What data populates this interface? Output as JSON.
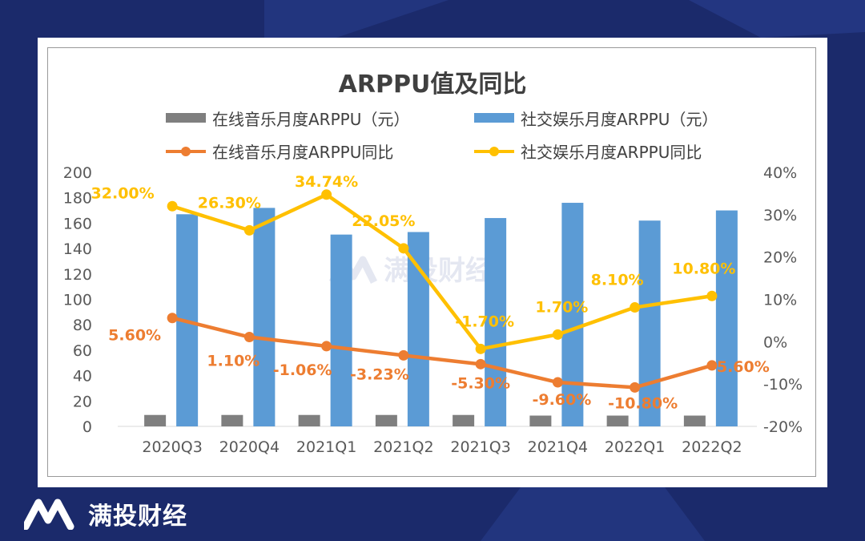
{
  "brand": {
    "name": "满投财经",
    "watermark": "满投财经"
  },
  "colors": {
    "music_bar": "#7f7f7f",
    "social_bar": "#5b9bd5",
    "music_line": "#ed7d31",
    "social_line": "#ffc000"
  },
  "chart_data": {
    "type": "bar+line",
    "title": "ARPPU值及同比",
    "categories": [
      "2020Q3",
      "2020Q4",
      "2021Q1",
      "2021Q2",
      "2021Q3",
      "2021Q4",
      "2022Q1",
      "2022Q2"
    ],
    "y_left": {
      "range": [
        0,
        200
      ],
      "ticks": [
        "0",
        "20",
        "40",
        "60",
        "80",
        "100",
        "120",
        "140",
        "160",
        "180",
        "200"
      ]
    },
    "y_right": {
      "range": [
        -20,
        40
      ],
      "ticks": [
        "-20%",
        "-10%",
        "0%",
        "10%",
        "20%",
        "30%",
        "40%"
      ]
    },
    "legend_position": "top",
    "series": [
      {
        "name": "在线音乐月度ARPPU（元）",
        "kind": "bar",
        "axis": "left",
        "values": [
          9.0,
          9.0,
          9.0,
          9.0,
          9.0,
          8.5,
          8.5,
          8.5
        ]
      },
      {
        "name": "社交娱乐月度ARPPU（元）",
        "kind": "bar",
        "axis": "left",
        "values": [
          167,
          172,
          151,
          153,
          164,
          176,
          162,
          170
        ]
      },
      {
        "name": "在线音乐月度ARPPU同比",
        "kind": "line",
        "axis": "right",
        "values": [
          5.6,
          1.1,
          -1.06,
          -3.23,
          -5.3,
          -9.6,
          -10.8,
          -5.6
        ],
        "labels": [
          "5.60%",
          "1.10%",
          "-1.06%",
          "-3.23%",
          "-5.30%",
          "-9.60%",
          "-10.80%",
          "-5.60%"
        ]
      },
      {
        "name": "社交娱乐月度ARPPU同比",
        "kind": "line",
        "axis": "right",
        "values": [
          32.0,
          26.3,
          34.74,
          22.05,
          -1.7,
          1.7,
          8.1,
          10.8
        ],
        "labels": [
          "32.00%",
          "26.30%",
          "34.74%",
          "22.05%",
          "-1.70%",
          "1.70%",
          "8.10%",
          "10.80%"
        ]
      }
    ]
  }
}
